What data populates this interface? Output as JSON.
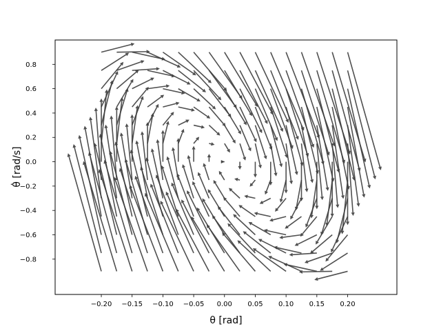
{
  "chart_data": {
    "type": "quiver",
    "title": "",
    "xlabel": "θ [rad]",
    "ylabel": "θ̇ [rad/s]",
    "xlim": [
      -0.275,
      0.28
    ],
    "ylim": [
      -1.09,
      1.0
    ],
    "xticks": [
      -0.2,
      -0.15,
      -0.1,
      -0.05,
      0.0,
      0.05,
      0.1,
      0.15,
      0.2
    ],
    "xtick_labels": [
      "−0.20",
      "−0.15",
      "−0.10",
      "−0.05",
      "0.00",
      "0.05",
      "0.10",
      "0.15",
      "0.20"
    ],
    "yticks": [
      0.8,
      0.6,
      0.4,
      0.2,
      0.0,
      -0.2,
      -0.4,
      -0.6,
      -0.8
    ],
    "ytick_labels": [
      "0.8",
      "0.6",
      "0.4",
      "0.2",
      "0.0",
      "−0.2",
      "−0.4",
      "−0.6",
      "−0.8"
    ],
    "grid": false,
    "arrow_color": "#3c3c3c",
    "grid_x": [
      -0.2,
      -0.175,
      -0.15,
      -0.125,
      -0.1,
      -0.075,
      -0.05,
      -0.025,
      0.0,
      0.025,
      0.05,
      0.075,
      0.1,
      0.125,
      0.15,
      0.175,
      0.2
    ],
    "grid_y": [
      -0.9,
      -0.75,
      -0.6,
      -0.45,
      -0.3,
      -0.15,
      0.0,
      0.15,
      0.3,
      0.45,
      0.6,
      0.75,
      0.9
    ],
    "field": {
      "description_of_vectors": "arrow displacement per grid point: dtheta = 0.06*thetadot, dthetadot = -2.6*theta - 0.5*thetadot",
      "dtheta_per_thetadot": 0.06,
      "dthetadot_per_theta": -2.6,
      "dthetadot_per_thetadot": -0.5
    }
  }
}
